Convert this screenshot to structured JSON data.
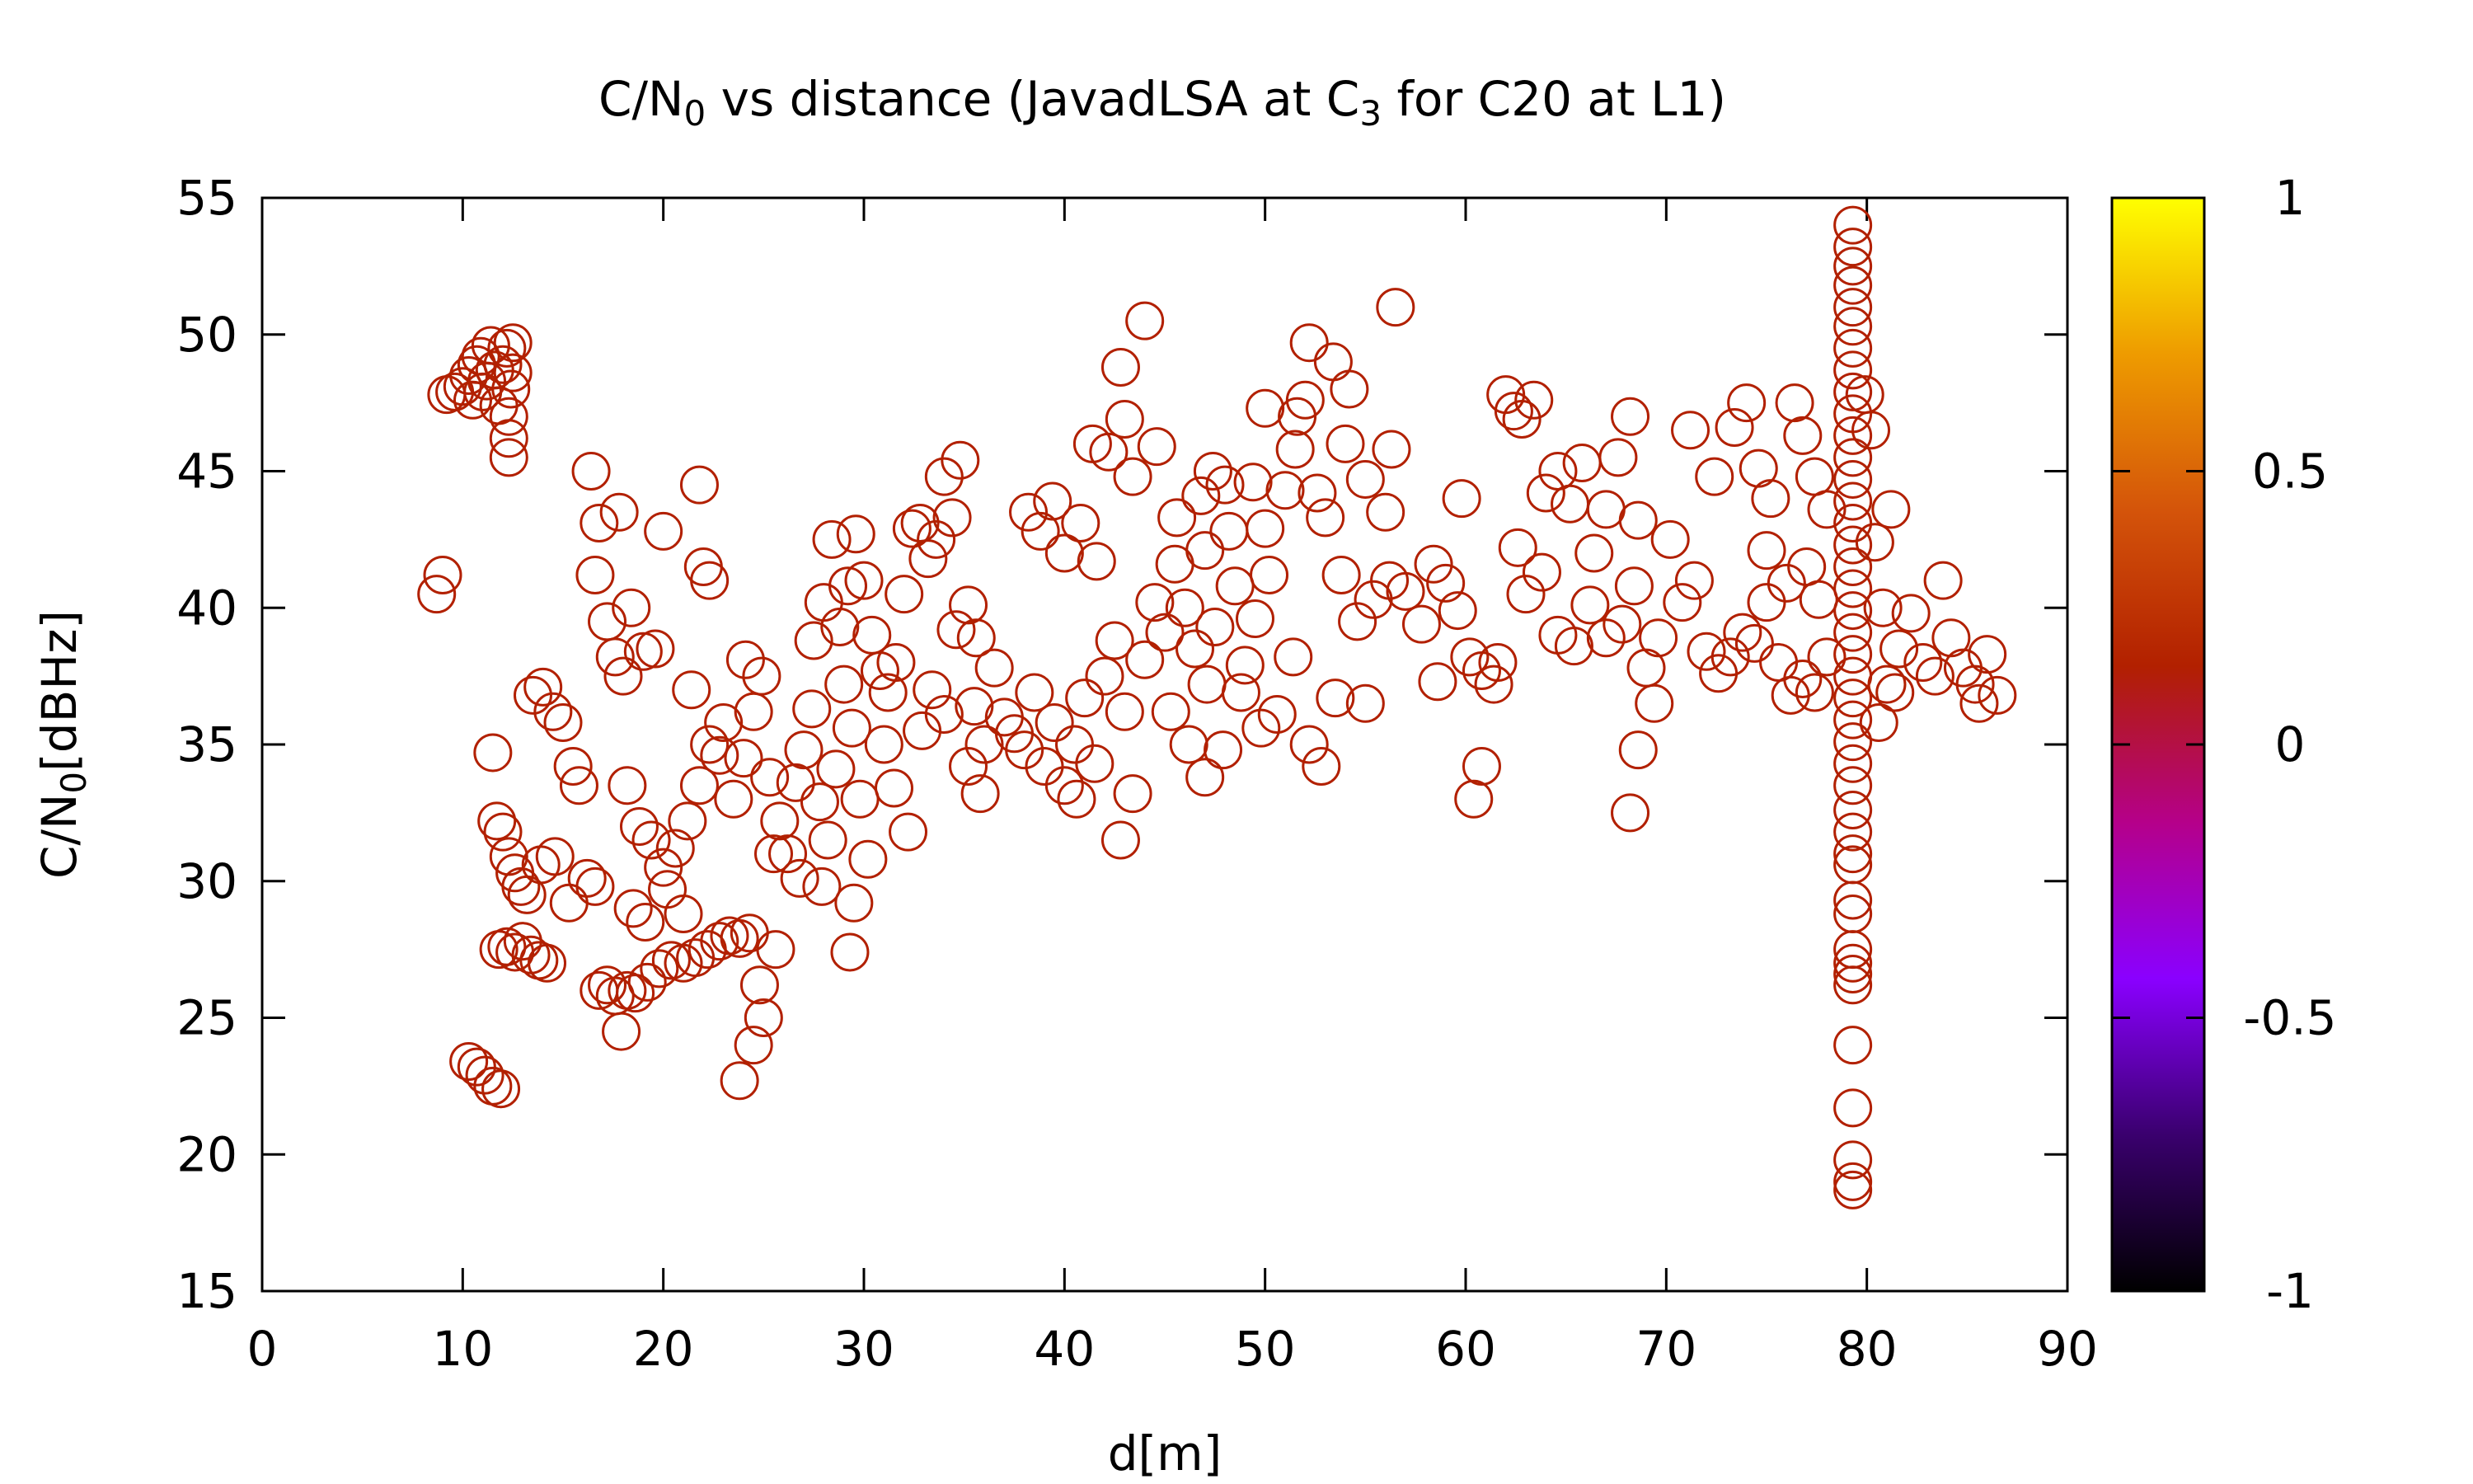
{
  "chart_data": {
    "type": "scatter",
    "title": {
      "main": "C/N",
      "sub": "0",
      "middle": " vs distance (JavadLSA at C",
      "sub2": "3",
      "tail": " for C20 at L1)"
    },
    "xlabel": "d[m]",
    "ylabel": {
      "main": "C/N",
      "sub": "0",
      "tail": "[dBHz]"
    },
    "xlim": [
      0,
      90
    ],
    "ylim": [
      15,
      55
    ],
    "xticks": [
      0,
      10,
      20,
      30,
      40,
      50,
      60,
      70,
      80,
      90
    ],
    "yticks": [
      15,
      20,
      25,
      30,
      35,
      40,
      45,
      50,
      55
    ],
    "marker": "open-circle",
    "marker_color": "#b22000",
    "colorbar": {
      "range": [
        -1,
        1
      ],
      "ticks": [
        "1",
        "0.5",
        "0",
        "-0.5",
        "-1"
      ],
      "tick_values": [
        1,
        0.5,
        0,
        -0.5,
        -1
      ],
      "gradient": [
        "#000000",
        "#3a006e",
        "#8a00ff",
        "#b5008a",
        "#b22000",
        "#d4540a",
        "#ee9b00",
        "#ffff00"
      ]
    },
    "points": [
      [
        8.7,
        40.5
      ],
      [
        9.0,
        41.2
      ],
      [
        9.2,
        47.8
      ],
      [
        9.6,
        47.9
      ],
      [
        10.0,
        48.1
      ],
      [
        10.3,
        48.5
      ],
      [
        10.5,
        47.6
      ],
      [
        10.7,
        48.9
      ],
      [
        10.9,
        49.2
      ],
      [
        11.0,
        47.9
      ],
      [
        11.2,
        48.3
      ],
      [
        11.4,
        49.6
      ],
      [
        11.6,
        48.7
      ],
      [
        11.8,
        47.4
      ],
      [
        12.0,
        48.9
      ],
      [
        12.2,
        49.5
      ],
      [
        12.3,
        46.2
      ],
      [
        12.3,
        45.5
      ],
      [
        12.3,
        47.0
      ],
      [
        12.4,
        48.0
      ],
      [
        12.5,
        49.7
      ],
      [
        12.5,
        48.6
      ],
      [
        10.3,
        23.4
      ],
      [
        10.7,
        23.2
      ],
      [
        11.1,
        22.9
      ],
      [
        11.5,
        22.5
      ],
      [
        11.9,
        22.4
      ],
      [
        11.5,
        34.7
      ],
      [
        11.7,
        32.2
      ],
      [
        12.0,
        31.8
      ],
      [
        12.3,
        30.9
      ],
      [
        12.6,
        30.3
      ],
      [
        12.9,
        29.8
      ],
      [
        11.8,
        27.5
      ],
      [
        12.2,
        27.6
      ],
      [
        12.6,
        27.4
      ],
      [
        13.0,
        27.8
      ],
      [
        13.4,
        27.3
      ],
      [
        13.8,
        27.1
      ],
      [
        14.2,
        27.0
      ],
      [
        13.5,
        36.8
      ],
      [
        14.0,
        37.1
      ],
      [
        14.5,
        36.2
      ],
      [
        15.0,
        35.8
      ],
      [
        15.5,
        34.2
      ],
      [
        15.8,
        33.5
      ],
      [
        16.2,
        30.1
      ],
      [
        16.6,
        29.8
      ],
      [
        13.2,
        29.5
      ],
      [
        13.9,
        30.6
      ],
      [
        14.6,
        30.9
      ],
      [
        15.3,
        29.2
      ],
      [
        16.4,
        45.0
      ],
      [
        16.8,
        43.1
      ],
      [
        16.6,
        41.2
      ],
      [
        17.2,
        39.5
      ],
      [
        17.6,
        38.2
      ],
      [
        18.0,
        37.5
      ],
      [
        18.4,
        40.0
      ],
      [
        19.0,
        38.4
      ],
      [
        19.6,
        38.5
      ],
      [
        17.8,
        43.5
      ],
      [
        20.0,
        42.8
      ],
      [
        16.8,
        26.0
      ],
      [
        17.2,
        26.2
      ],
      [
        17.6,
        25.8
      ],
      [
        17.9,
        24.5
      ],
      [
        18.2,
        26.0
      ],
      [
        18.6,
        25.9
      ],
      [
        19.2,
        26.3
      ],
      [
        19.8,
        26.8
      ],
      [
        20.4,
        27.1
      ],
      [
        21.0,
        27.0
      ],
      [
        21.6,
        27.2
      ],
      [
        22.2,
        27.5
      ],
      [
        22.8,
        27.8
      ],
      [
        23.3,
        28.0
      ],
      [
        23.8,
        27.9
      ],
      [
        24.3,
        28.1
      ],
      [
        24.8,
        26.2
      ],
      [
        25.0,
        25.0
      ],
      [
        24.5,
        24.0
      ],
      [
        23.8,
        22.7
      ],
      [
        25.6,
        27.5
      ],
      [
        18.2,
        33.5
      ],
      [
        18.8,
        32.0
      ],
      [
        19.4,
        31.5
      ],
      [
        20.0,
        30.5
      ],
      [
        20.6,
        31.2
      ],
      [
        21.2,
        32.2
      ],
      [
        21.8,
        33.5
      ],
      [
        22.3,
        35.0
      ],
      [
        22.8,
        34.6
      ],
      [
        18.5,
        29.0
      ],
      [
        19.1,
        28.5
      ],
      [
        20.2,
        29.7
      ],
      [
        21.0,
        28.8
      ],
      [
        21.4,
        37.0
      ],
      [
        21.8,
        44.5
      ],
      [
        22.0,
        41.5
      ],
      [
        22.3,
        41.0
      ],
      [
        23.0,
        35.8
      ],
      [
        23.5,
        33.0
      ],
      [
        24.0,
        34.5
      ],
      [
        24.5,
        36.2
      ],
      [
        24.9,
        37.5
      ],
      [
        25.3,
        33.8
      ],
      [
        25.8,
        32.2
      ],
      [
        26.2,
        31.0
      ],
      [
        26.6,
        33.6
      ],
      [
        27.0,
        34.8
      ],
      [
        27.4,
        36.3
      ],
      [
        27.8,
        32.9
      ],
      [
        28.2,
        31.5
      ],
      [
        28.6,
        34.1
      ],
      [
        29.0,
        37.2
      ],
      [
        29.4,
        35.6
      ],
      [
        29.8,
        33.0
      ],
      [
        30.2,
        30.8
      ],
      [
        24.1,
        38.1
      ],
      [
        25.5,
        31.0
      ],
      [
        26.8,
        30.1
      ],
      [
        27.9,
        29.8
      ],
      [
        29.5,
        29.2
      ],
      [
        29.3,
        27.4
      ],
      [
        27.5,
        38.8
      ],
      [
        28.0,
        40.2
      ],
      [
        28.4,
        42.5
      ],
      [
        28.8,
        39.3
      ],
      [
        29.2,
        40.8
      ],
      [
        29.6,
        42.7
      ],
      [
        30.0,
        41.0
      ],
      [
        30.4,
        39.0
      ],
      [
        30.8,
        37.7
      ],
      [
        31.2,
        36.9
      ],
      [
        31.6,
        38.0
      ],
      [
        32.0,
        40.5
      ],
      [
        32.4,
        42.9
      ],
      [
        32.8,
        43.1
      ],
      [
        33.2,
        41.8
      ],
      [
        33.6,
        42.5
      ],
      [
        34.0,
        44.8
      ],
      [
        34.4,
        43.3
      ],
      [
        34.8,
        45.4
      ],
      [
        35.2,
        40.1
      ],
      [
        35.6,
        38.9
      ],
      [
        31.0,
        35.0
      ],
      [
        31.5,
        33.4
      ],
      [
        32.2,
        31.8
      ],
      [
        32.9,
        35.5
      ],
      [
        33.4,
        37.0
      ],
      [
        34.0,
        36.1
      ],
      [
        34.6,
        39.2
      ],
      [
        35.2,
        34.2
      ],
      [
        35.8,
        33.2
      ],
      [
        35.5,
        36.4
      ],
      [
        36.0,
        35.0
      ],
      [
        36.5,
        37.8
      ],
      [
        37.0,
        36.0
      ],
      [
        37.5,
        35.4
      ],
      [
        38.0,
        34.8
      ],
      [
        38.5,
        36.9
      ],
      [
        39.0,
        34.2
      ],
      [
        39.5,
        35.8
      ],
      [
        40.0,
        33.5
      ],
      [
        40.5,
        35.0
      ],
      [
        41.0,
        36.7
      ],
      [
        41.5,
        34.3
      ],
      [
        42.0,
        37.5
      ],
      [
        42.5,
        38.8
      ],
      [
        43.0,
        36.2
      ],
      [
        38.2,
        43.5
      ],
      [
        38.8,
        42.8
      ],
      [
        39.4,
        43.9
      ],
      [
        40.0,
        42.0
      ],
      [
        40.8,
        43.1
      ],
      [
        41.6,
        41.7
      ],
      [
        41.4,
        46.0
      ],
      [
        42.2,
        45.7
      ],
      [
        43.0,
        46.9
      ],
      [
        43.4,
        44.8
      ],
      [
        44.0,
        50.5
      ],
      [
        42.8,
        48.8
      ],
      [
        44.6,
        45.9
      ],
      [
        42.8,
        31.5
      ],
      [
        43.4,
        33.2
      ],
      [
        40.6,
        33.0
      ],
      [
        44.0,
        38.1
      ],
      [
        44.5,
        40.2
      ],
      [
        45.0,
        39.1
      ],
      [
        45.5,
        41.6
      ],
      [
        46.0,
        40.0
      ],
      [
        46.5,
        38.5
      ],
      [
        47.0,
        42.1
      ],
      [
        47.5,
        39.3
      ],
      [
        48.0,
        44.5
      ],
      [
        48.5,
        40.8
      ],
      [
        49.0,
        37.9
      ],
      [
        49.5,
        39.6
      ],
      [
        50.0,
        42.9
      ],
      [
        45.3,
        36.2
      ],
      [
        46.2,
        35.0
      ],
      [
        47.1,
        37.2
      ],
      [
        47.9,
        34.8
      ],
      [
        48.8,
        36.9
      ],
      [
        45.6,
        43.3
      ],
      [
        46.8,
        44.1
      ],
      [
        47.4,
        45.0
      ],
      [
        48.2,
        42.8
      ],
      [
        49.4,
        44.6
      ],
      [
        50.2,
        41.2
      ],
      [
        51.0,
        44.3
      ],
      [
        51.6,
        47.0
      ],
      [
        52.2,
        49.7
      ],
      [
        52.0,
        47.6
      ],
      [
        53.4,
        49.0
      ],
      [
        54.2,
        48.0
      ],
      [
        50.0,
        47.3
      ],
      [
        51.5,
        45.8
      ],
      [
        52.6,
        44.2
      ],
      [
        53.0,
        43.3
      ],
      [
        54.0,
        46.0
      ],
      [
        55.0,
        44.7
      ],
      [
        56.0,
        43.5
      ],
      [
        56.3,
        45.8
      ],
      [
        56.5,
        51.0
      ],
      [
        50.6,
        36.1
      ],
      [
        51.4,
        38.2
      ],
      [
        52.2,
        35.0
      ],
      [
        52.8,
        34.2
      ],
      [
        53.5,
        36.7
      ],
      [
        55.0,
        36.5
      ],
      [
        47.0,
        33.8
      ],
      [
        49.8,
        35.6
      ],
      [
        53.8,
        41.2
      ],
      [
        54.6,
        39.5
      ],
      [
        55.4,
        40.3
      ],
      [
        56.2,
        41.0
      ],
      [
        57.0,
        40.6
      ],
      [
        57.8,
        39.4
      ],
      [
        58.4,
        41.6
      ],
      [
        59.0,
        40.9
      ],
      [
        59.6,
        39.9
      ],
      [
        60.2,
        38.2
      ],
      [
        60.8,
        37.7
      ],
      [
        61.4,
        37.2
      ],
      [
        58.6,
        37.3
      ],
      [
        59.8,
        44.0
      ],
      [
        60.4,
        33.0
      ],
      [
        60.8,
        34.2
      ],
      [
        61.6,
        38.0
      ],
      [
        62.0,
        47.8
      ],
      [
        62.4,
        47.2
      ],
      [
        62.8,
        46.9
      ],
      [
        63.4,
        47.6
      ],
      [
        64.0,
        44.2
      ],
      [
        64.6,
        45.0
      ],
      [
        65.2,
        43.8
      ],
      [
        65.8,
        45.3
      ],
      [
        66.4,
        42.0
      ],
      [
        67.0,
        43.6
      ],
      [
        67.6,
        45.5
      ],
      [
        68.2,
        47.0
      ],
      [
        68.6,
        43.2
      ],
      [
        62.6,
        42.2
      ],
      [
        63.0,
        40.5
      ],
      [
        63.8,
        41.3
      ],
      [
        64.6,
        39.0
      ],
      [
        65.4,
        38.6
      ],
      [
        66.2,
        40.1
      ],
      [
        67.0,
        38.9
      ],
      [
        67.8,
        39.4
      ],
      [
        68.4,
        40.8
      ],
      [
        69.0,
        37.8
      ],
      [
        68.2,
        32.5
      ],
      [
        68.6,
        34.8
      ],
      [
        69.4,
        36.5
      ],
      [
        69.6,
        38.9
      ],
      [
        70.2,
        42.5
      ],
      [
        70.8,
        40.2
      ],
      [
        71.4,
        41.0
      ],
      [
        72.0,
        38.4
      ],
      [
        72.6,
        37.6
      ],
      [
        73.2,
        38.2
      ],
      [
        73.8,
        39.1
      ],
      [
        74.4,
        38.7
      ],
      [
        75.0,
        40.2
      ],
      [
        75.6,
        38.0
      ],
      [
        76.2,
        36.8
      ],
      [
        76.8,
        37.4
      ],
      [
        77.4,
        36.9
      ],
      [
        78.0,
        38.2
      ],
      [
        71.2,
        46.5
      ],
      [
        72.4,
        44.8
      ],
      [
        73.4,
        46.6
      ],
      [
        74.0,
        47.5
      ],
      [
        74.6,
        45.1
      ],
      [
        75.2,
        44.0
      ],
      [
        76.4,
        47.5
      ],
      [
        76.8,
        46.3
      ],
      [
        77.4,
        44.8
      ],
      [
        78.0,
        43.6
      ],
      [
        75.0,
        42.1
      ],
      [
        76.0,
        40.9
      ],
      [
        77.0,
        41.5
      ],
      [
        77.6,
        40.3
      ],
      [
        79.3,
        54.0
      ],
      [
        79.3,
        53.2
      ],
      [
        79.3,
        52.5
      ],
      [
        79.3,
        51.8
      ],
      [
        79.3,
        51.0
      ],
      [
        79.3,
        50.3
      ],
      [
        79.3,
        49.5
      ],
      [
        79.3,
        48.7
      ],
      [
        79.3,
        47.9
      ],
      [
        79.3,
        47.1
      ],
      [
        79.3,
        46.3
      ],
      [
        79.3,
        45.5
      ],
      [
        79.3,
        44.7
      ],
      [
        79.3,
        43.9
      ],
      [
        79.3,
        43.1
      ],
      [
        79.3,
        42.3
      ],
      [
        79.3,
        41.5
      ],
      [
        79.3,
        40.7
      ],
      [
        79.3,
        39.9
      ],
      [
        79.3,
        39.1
      ],
      [
        79.3,
        38.3
      ],
      [
        79.3,
        37.5
      ],
      [
        79.3,
        36.7
      ],
      [
        79.3,
        35.9
      ],
      [
        79.3,
        35.1
      ],
      [
        79.3,
        34.3
      ],
      [
        79.3,
        33.5
      ],
      [
        79.3,
        32.6
      ],
      [
        79.3,
        31.8
      ],
      [
        79.3,
        31.0
      ],
      [
        79.3,
        30.6
      ],
      [
        79.3,
        29.3
      ],
      [
        79.3,
        28.8
      ],
      [
        79.3,
        27.5
      ],
      [
        79.3,
        27.0
      ],
      [
        79.3,
        26.6
      ],
      [
        79.3,
        26.2
      ],
      [
        79.3,
        24.0
      ],
      [
        79.3,
        21.7
      ],
      [
        79.3,
        19.8
      ],
      [
        79.3,
        19.0
      ],
      [
        79.3,
        18.7
      ],
      [
        79.9,
        47.8
      ],
      [
        80.2,
        46.5
      ],
      [
        80.4,
        42.4
      ],
      [
        80.8,
        40.0
      ],
      [
        81.2,
        43.6
      ],
      [
        81.0,
        37.2
      ],
      [
        81.6,
        38.5
      ],
      [
        82.2,
        39.8
      ],
      [
        82.8,
        38.0
      ],
      [
        83.4,
        37.5
      ],
      [
        83.8,
        41.0
      ],
      [
        84.2,
        38.9
      ],
      [
        84.8,
        37.8
      ],
      [
        85.4,
        37.2
      ],
      [
        86.0,
        38.3
      ],
      [
        86.5,
        36.8
      ],
      [
        85.6,
        36.5
      ],
      [
        80.6,
        35.8
      ],
      [
        81.4,
        36.9
      ]
    ]
  }
}
